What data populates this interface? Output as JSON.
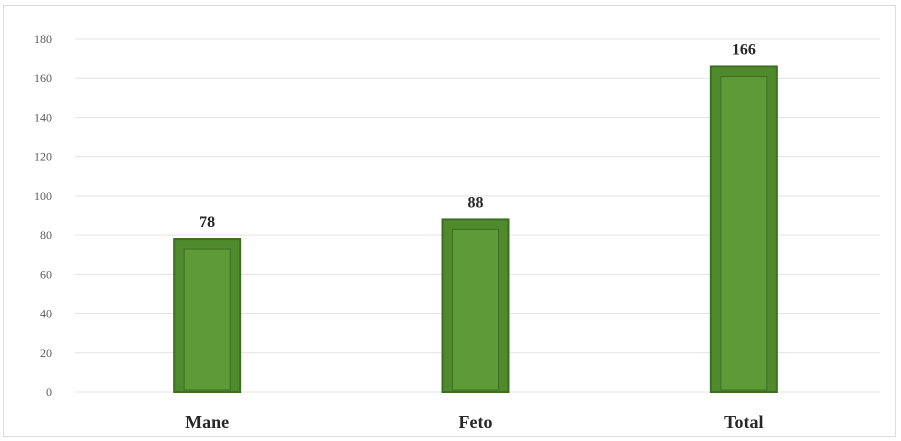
{
  "chart_data": {
    "type": "bar",
    "title": "",
    "xlabel": "",
    "ylabel": "",
    "categories": [
      "Mane",
      "Feto",
      "Total"
    ],
    "values": [
      78,
      88,
      166
    ],
    "data_labels": [
      "78",
      "88",
      "166"
    ],
    "ylim": [
      0,
      180
    ],
    "yticks": [
      0,
      20,
      40,
      60,
      80,
      100,
      120,
      140,
      160,
      180
    ],
    "ytick_labels": [
      "0",
      "20",
      "40",
      "60",
      "80",
      "100",
      "120",
      "140",
      "160",
      "180"
    ],
    "grid": true,
    "legend": "none",
    "colors": {
      "bar_fill": "#4f8a2c",
      "bar_edge": "#3e6f21",
      "bar_inner": "#5e9a38",
      "gridline": "#e3e3e3"
    }
  }
}
